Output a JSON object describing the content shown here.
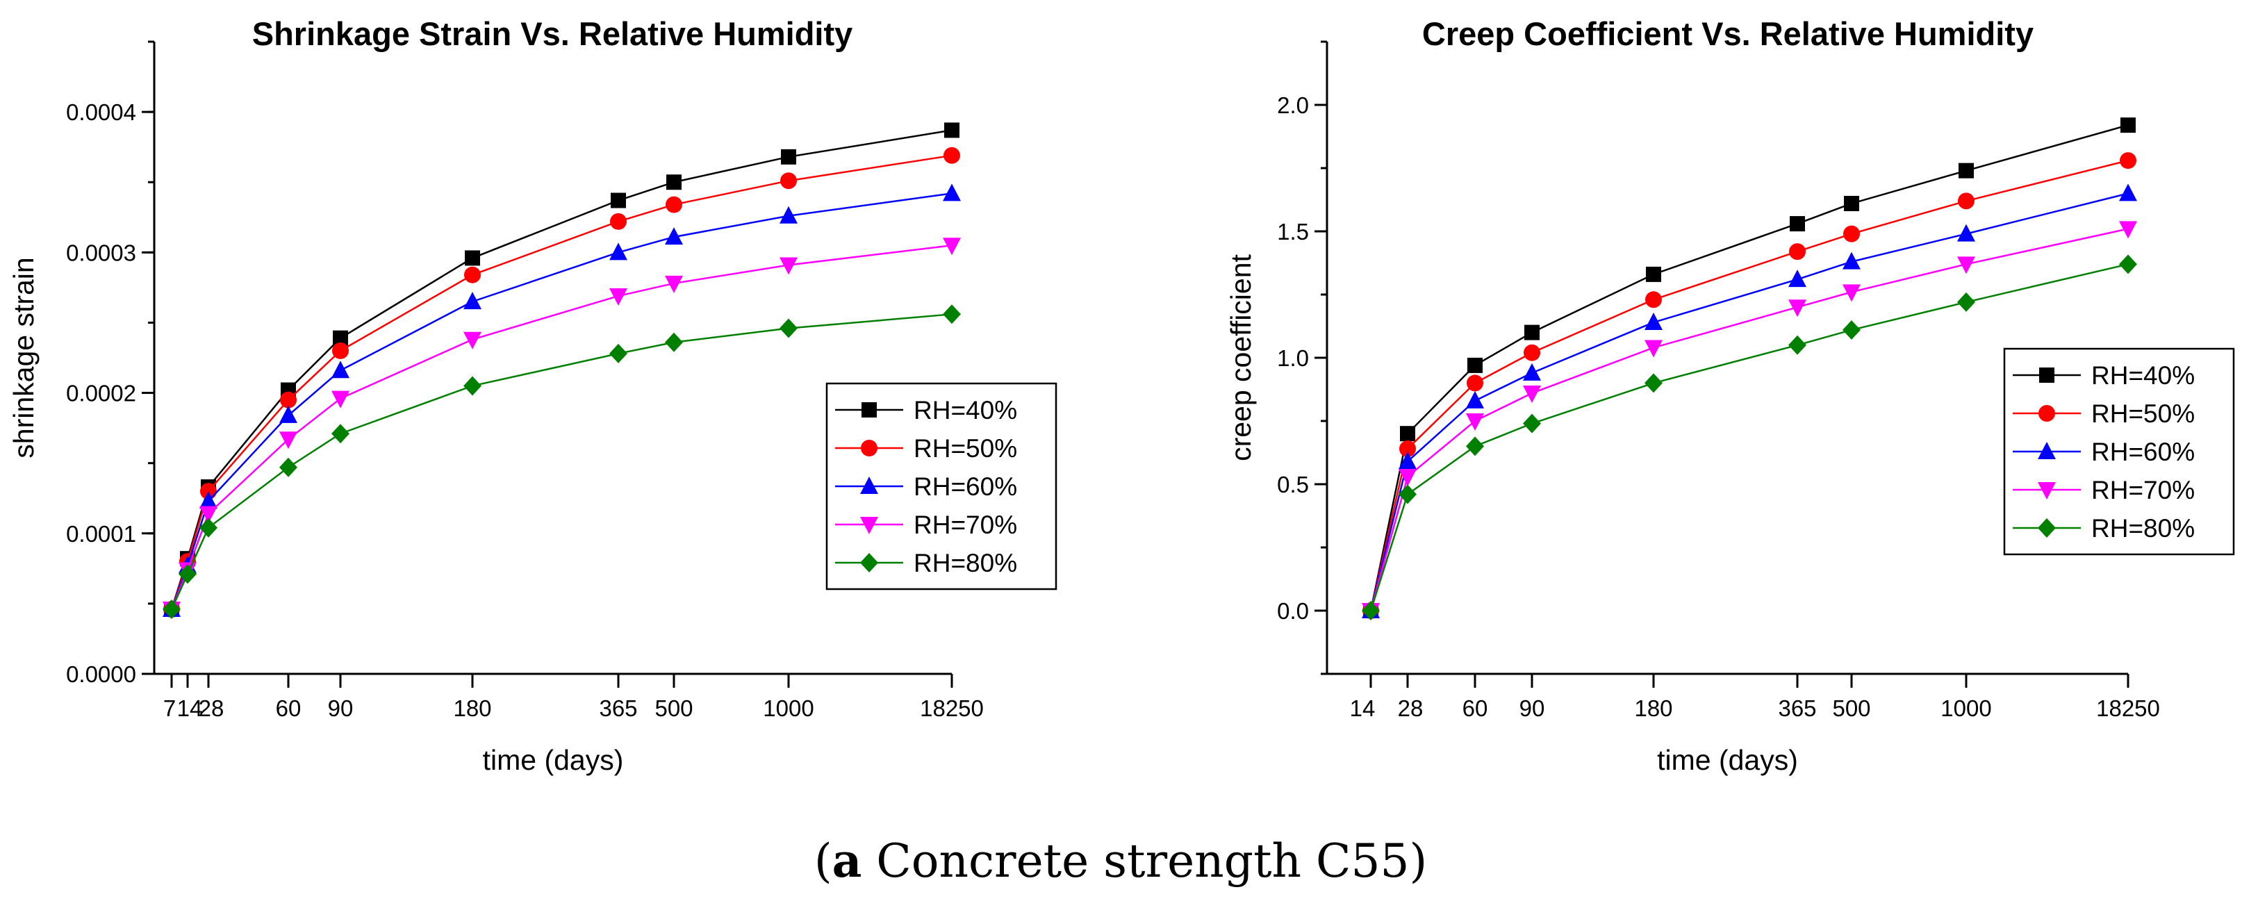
{
  "figure_caption": {
    "label": "a",
    "text": " Concrete strength C55"
  },
  "chart_data": [
    {
      "type": "line",
      "title": "Shrinkage Strain Vs. Relative Humidity",
      "xlabel": "time (days)",
      "ylabel": "shrinkage strain",
      "x_tick_labels": [
        "7",
        "14",
        "28",
        "60",
        "90",
        "180",
        "365",
        "500",
        "1000",
        "18250"
      ],
      "y_ticks": [
        "0.0000",
        "0.0001",
        "0.0002",
        "0.0003",
        "0.0004"
      ],
      "ylim": [
        0,
        0.00045
      ],
      "legend_position": "center-right",
      "series": [
        {
          "name": "RH=40%",
          "color": "#000000",
          "marker": "square",
          "values": [
            4.6e-05,
            8.2e-05,
            0.000133,
            0.000202,
            0.000239,
            0.000296,
            0.000337,
            0.00035,
            0.000368,
            0.000387
          ]
        },
        {
          "name": "RH=50%",
          "color": "#ff0000",
          "marker": "circle",
          "values": [
            4.6e-05,
            8e-05,
            0.00013,
            0.000195,
            0.00023,
            0.000284,
            0.000322,
            0.000334,
            0.000351,
            0.000369
          ]
        },
        {
          "name": "RH=60%",
          "color": "#0000ff",
          "marker": "triangle-up",
          "values": [
            4.6e-05,
            7.7e-05,
            0.000123,
            0.000184,
            0.000216,
            0.000265,
            0.0003,
            0.000311,
            0.000326,
            0.000342
          ]
        },
        {
          "name": "RH=70%",
          "color": "#ff00ff",
          "marker": "triangle-down",
          "values": [
            4.6e-05,
            7.4e-05,
            0.000114,
            0.000167,
            0.000196,
            0.000238,
            0.000269,
            0.000278,
            0.000291,
            0.000305
          ]
        },
        {
          "name": "RH=80%",
          "color": "#008000",
          "marker": "diamond",
          "values": [
            4.6e-05,
            7.1e-05,
            0.000104,
            0.000147,
            0.000171,
            0.000205,
            0.000228,
            0.000236,
            0.000246,
            0.000256
          ]
        }
      ]
    },
    {
      "type": "line",
      "title": "Creep Coefficient Vs. Relative Humidity",
      "xlabel": "time (days)",
      "ylabel": "creep coefficient",
      "x_tick_labels": [
        "14",
        "28",
        "60",
        "90",
        "180",
        "365",
        "500",
        "1000",
        "18250"
      ],
      "y_ticks": [
        "0.0",
        "0.5",
        "1.0",
        "1.5",
        "2.0"
      ],
      "ylim": [
        -0.25,
        2.25
      ],
      "legend_position": "center-right",
      "series": [
        {
          "name": "RH=40%",
          "color": "#000000",
          "marker": "square",
          "values": [
            0.0,
            0.7,
            0.97,
            1.1,
            1.33,
            1.53,
            1.61,
            1.74,
            1.92
          ]
        },
        {
          "name": "RH=50%",
          "color": "#ff0000",
          "marker": "circle",
          "values": [
            0.0,
            0.64,
            0.9,
            1.02,
            1.23,
            1.42,
            1.49,
            1.62,
            1.78
          ]
        },
        {
          "name": "RH=60%",
          "color": "#0000ff",
          "marker": "triangle-up",
          "values": [
            0.0,
            0.59,
            0.83,
            0.94,
            1.14,
            1.31,
            1.38,
            1.49,
            1.65
          ]
        },
        {
          "name": "RH=70%",
          "color": "#ff00ff",
          "marker": "triangle-down",
          "values": [
            0.0,
            0.53,
            0.75,
            0.86,
            1.04,
            1.2,
            1.26,
            1.37,
            1.51
          ]
        },
        {
          "name": "RH=80%",
          "color": "#008000",
          "marker": "diamond",
          "values": [
            0.0,
            0.46,
            0.65,
            0.74,
            0.9,
            1.05,
            1.11,
            1.22,
            1.37
          ]
        }
      ]
    }
  ]
}
